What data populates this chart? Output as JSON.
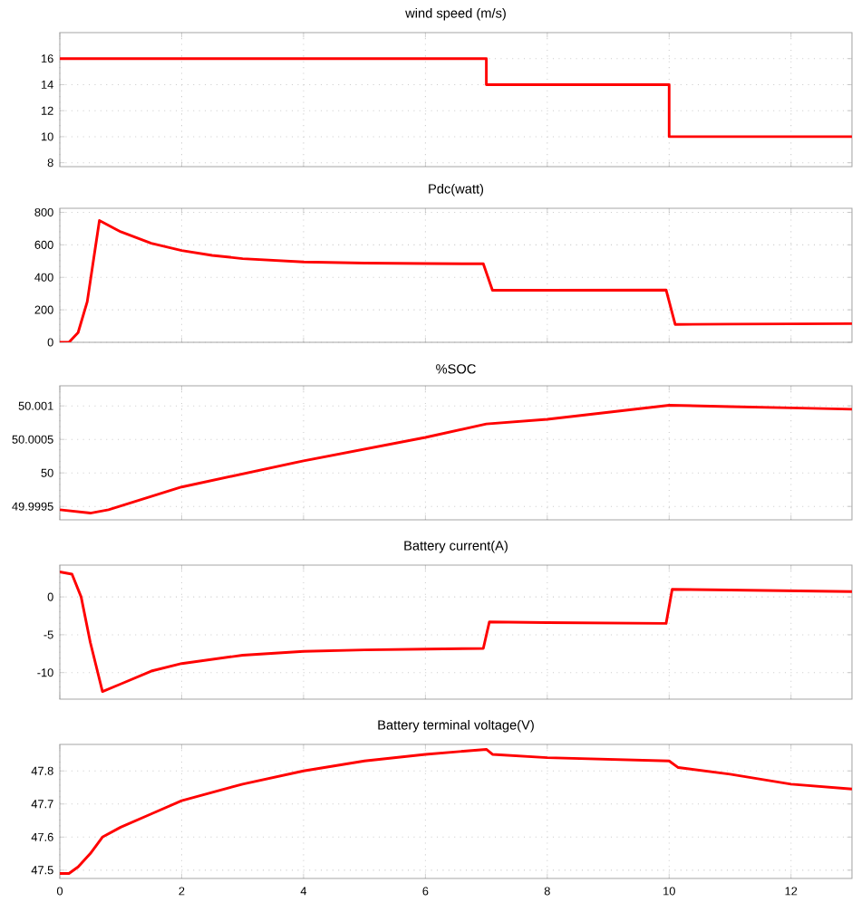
{
  "chart_data": [
    {
      "type": "line",
      "title": "wind speed (m/s)",
      "color": "#ff0000",
      "grid": true,
      "tick_labels": "y",
      "xlim": [
        0,
        13
      ],
      "xticks": [
        0,
        2,
        4,
        6,
        8,
        10,
        12
      ],
      "ylim": [
        7.7,
        18
      ],
      "yticks": [
        8,
        10,
        12,
        14,
        16
      ],
      "x": [
        0,
        7,
        7,
        10,
        10,
        13
      ],
      "values": [
        16,
        16,
        14,
        14,
        10,
        10
      ]
    },
    {
      "type": "line",
      "title": "Pdc(watt)",
      "color": "#ff0000",
      "grid": true,
      "tick_labels": "y",
      "xlim": [
        0,
        13
      ],
      "xticks": [
        0,
        2,
        4,
        6,
        8,
        10,
        12
      ],
      "ylim": [
        0,
        825
      ],
      "yticks": [
        0,
        200,
        400,
        600,
        800
      ],
      "x": [
        0,
        0.15,
        0.3,
        0.45,
        0.55,
        0.65,
        1,
        1.5,
        2,
        2.5,
        3,
        4,
        5,
        6,
        6.95,
        7.1,
        8,
        9.95,
        10.1,
        11,
        13
      ],
      "values": [
        0,
        0,
        60,
        250,
        500,
        750,
        680,
        610,
        565,
        535,
        515,
        495,
        488,
        485,
        483,
        320,
        320,
        322,
        110,
        112,
        115
      ]
    },
    {
      "type": "line",
      "title": "%SOC",
      "color": "#ff0000",
      "grid": true,
      "tick_labels": "y",
      "xlim": [
        0,
        13
      ],
      "xticks": [
        0,
        2,
        4,
        6,
        8,
        10,
        12
      ],
      "ylim": [
        49.9993,
        50.0013
      ],
      "yticks": [
        49.9995,
        50,
        50.0005,
        50.001
      ],
      "x": [
        0,
        0.5,
        0.8,
        2,
        4,
        6,
        7,
        8,
        10,
        11,
        12,
        13
      ],
      "values": [
        49.99945,
        49.9994,
        49.99945,
        49.99979,
        50.00018,
        50.00053,
        50.00073,
        50.0008,
        50.00101,
        50.00099,
        50.00097,
        50.00095
      ]
    },
    {
      "type": "line",
      "title": "Battery current(A)",
      "color": "#ff0000",
      "grid": true,
      "tick_labels": "y",
      "xlim": [
        0,
        13
      ],
      "xticks": [
        0,
        2,
        4,
        6,
        8,
        10,
        12
      ],
      "ylim": [
        -13.5,
        4.2
      ],
      "yticks": [
        -10,
        -5,
        0
      ],
      "x": [
        0,
        0.2,
        0.35,
        0.5,
        0.7,
        1,
        1.5,
        2,
        3,
        4,
        5,
        6,
        6.95,
        7.05,
        8,
        9.95,
        10.05,
        11,
        13
      ],
      "values": [
        3.3,
        3,
        0,
        -6,
        -12.5,
        -11.5,
        -9.8,
        -8.8,
        -7.7,
        -7.2,
        -7,
        -6.9,
        -6.8,
        -3.3,
        -3.4,
        -3.5,
        1,
        0.9,
        0.7
      ]
    },
    {
      "type": "line",
      "title": "Battery terminal voltage(V)",
      "color": "#ff0000",
      "grid": true,
      "xlim": [
        0,
        13
      ],
      "xticks": [
        0,
        2,
        4,
        6,
        8,
        10,
        12
      ],
      "ylim": [
        47.475,
        47.88
      ],
      "yticks": [
        47.5,
        47.6,
        47.7,
        47.8
      ],
      "x": [
        0,
        0.15,
        0.3,
        0.5,
        0.7,
        1,
        1.5,
        2,
        3,
        4,
        5,
        6,
        7,
        7.1,
        8,
        10,
        10.15,
        11,
        12,
        13
      ],
      "values": [
        47.49,
        47.49,
        47.51,
        47.55,
        47.6,
        47.63,
        47.67,
        47.71,
        47.76,
        47.8,
        47.83,
        47.85,
        47.865,
        47.85,
        47.84,
        47.83,
        47.81,
        47.79,
        47.76,
        47.745
      ]
    }
  ]
}
